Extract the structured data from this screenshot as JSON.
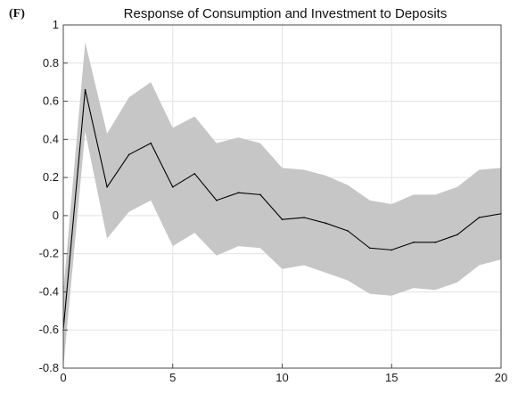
{
  "panel_label": "(F)",
  "chart_data": {
    "type": "line",
    "title": "Response of Consumption and Investment to Deposits",
    "xlabel": "",
    "ylabel": "",
    "xlim": [
      0,
      20
    ],
    "ylim": [
      -0.8,
      1
    ],
    "grid": true,
    "x_ticks": [
      0,
      5,
      10,
      15,
      20
    ],
    "x_tick_labels": [
      "0",
      "5",
      "10",
      "15",
      "20"
    ],
    "y_ticks": [
      -0.8,
      -0.6,
      -0.4,
      -0.2,
      0,
      0.2,
      0.4,
      0.6,
      0.8,
      1
    ],
    "y_tick_labels": [
      "-0.8",
      "-0.6",
      "-0.4",
      "-0.2",
      "0",
      "0.2",
      "0.4",
      "0.6",
      "0.8",
      "1"
    ],
    "x": [
      0,
      1,
      2,
      3,
      4,
      5,
      6,
      7,
      8,
      9,
      10,
      11,
      12,
      13,
      14,
      15,
      16,
      17,
      18,
      19,
      20
    ],
    "series": [
      {
        "values": [
          -0.6,
          0.66,
          0.15,
          0.32,
          0.38,
          0.15,
          0.22,
          0.08,
          0.12,
          0.11,
          -0.02,
          -0.01,
          -0.04,
          -0.08,
          -0.17,
          -0.18,
          -0.14,
          -0.14,
          -0.1,
          -0.01,
          0.01
        ],
        "lower": [
          -0.8,
          0.44,
          -0.12,
          0.02,
          0.08,
          -0.16,
          -0.09,
          -0.21,
          -0.16,
          -0.17,
          -0.28,
          -0.26,
          -0.3,
          -0.34,
          -0.41,
          -0.42,
          -0.38,
          -0.39,
          -0.35,
          -0.26,
          -0.23
        ],
        "upper": [
          -0.4,
          0.91,
          0.43,
          0.62,
          0.7,
          0.46,
          0.52,
          0.38,
          0.41,
          0.38,
          0.25,
          0.24,
          0.21,
          0.16,
          0.08,
          0.06,
          0.11,
          0.11,
          0.15,
          0.24,
          0.25
        ],
        "line_color": "#000000",
        "band_color": "#c6c6c6"
      }
    ]
  }
}
